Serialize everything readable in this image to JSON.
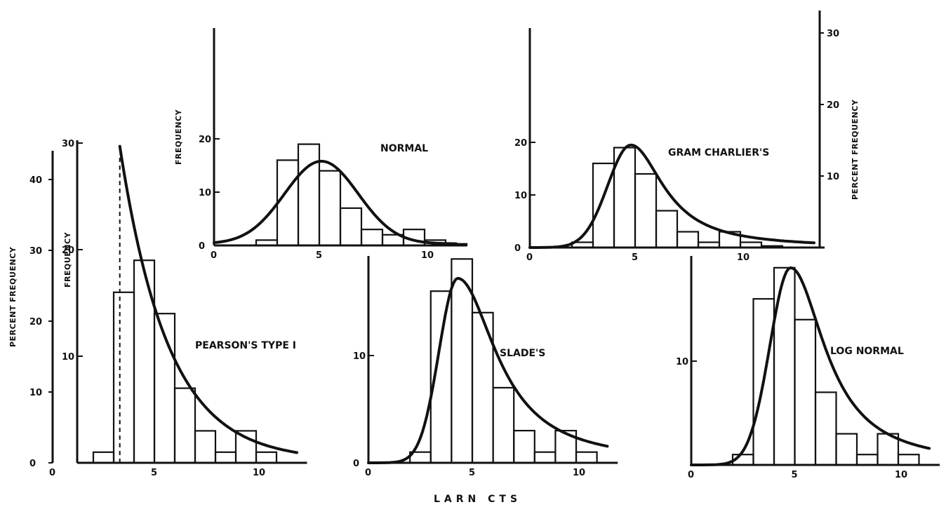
{
  "figure": {
    "xlabel": "LARN CTS"
  },
  "chart_data": [
    {
      "type": "bar",
      "title": "NORMAL",
      "ylabel": "FREQUENCY",
      "x_ticks": [
        "0",
        "5",
        "10"
      ],
      "y_ticks": [
        "0",
        "10",
        "20"
      ],
      "xlim": [
        0,
        12
      ],
      "ylim": [
        0,
        20
      ],
      "bins_start": [
        2,
        3,
        4,
        5,
        6,
        7,
        8,
        9,
        10,
        11
      ],
      "values": [
        1,
        16,
        19,
        14,
        7,
        3,
        2,
        3,
        1,
        0.3
      ],
      "fitted_curve": {
        "kind": "normal",
        "mean": 5.1,
        "peak": 15.5,
        "sd": 1.75
      }
    },
    {
      "type": "bar",
      "title": "GRAM CHARLIER'S",
      "ylabel": "PERCENT FREQUENCY",
      "x_ticks": [
        "0",
        "5",
        "10"
      ],
      "y_ticks": [
        "0",
        "10",
        "20"
      ],
      "y_ticks_right": [
        "10",
        "20",
        "30"
      ],
      "xlim": [
        0,
        14
      ],
      "ylim": [
        0,
        20
      ],
      "bins_start": [
        2,
        3,
        4,
        5,
        6,
        7,
        8,
        9,
        10,
        11
      ],
      "values": [
        1,
        16,
        19,
        14,
        7,
        3,
        1,
        3,
        1,
        0.3
      ],
      "fitted_curve": {
        "kind": "skewed",
        "mode": 4.8,
        "peak": 19.5,
        "sd_left": 1.1,
        "sd_right": 1.6
      }
    },
    {
      "type": "bar",
      "title": "PEARSON'S TYPE I",
      "ylabel": "FREQUENCY",
      "ylabel_outer": "PERCENT FREQUENCY",
      "x_ticks": [
        "0",
        "5",
        "10"
      ],
      "y_ticks": [
        "10",
        "20",
        "30"
      ],
      "y_ticks_outer": [
        "0",
        "10",
        "20",
        "30",
        "40"
      ],
      "xlim": [
        0,
        12.5
      ],
      "ylim": [
        0,
        30
      ],
      "bins_start": [
        2,
        3,
        4,
        5,
        6,
        7,
        8,
        9,
        10
      ],
      "values": [
        1,
        16,
        19,
        14,
        7,
        3,
        1,
        3,
        1
      ],
      "fitted_curve": {
        "kind": "decay",
        "start": 3.3,
        "end": 12,
        "max": 29.5
      }
    },
    {
      "type": "bar",
      "title": "SLADE'S",
      "x_ticks": [
        "0",
        "5",
        "10"
      ],
      "y_ticks": [
        "0",
        "10"
      ],
      "xlim": [
        0,
        12
      ],
      "ylim": [
        0,
        20
      ],
      "bins_start": [
        2,
        3,
        4,
        5,
        6,
        7,
        8,
        9,
        10
      ],
      "values": [
        1,
        16,
        19,
        14,
        7,
        3,
        1,
        3,
        1
      ],
      "fitted_curve": {
        "kind": "skewed",
        "mode": 4.3,
        "peak": 17.2,
        "sd_left": 0.9,
        "sd_right": 1.9
      }
    },
    {
      "type": "bar",
      "title": "LOG NORMAL",
      "x_ticks": [
        "0",
        "5",
        "10"
      ],
      "y_ticks": [
        "10"
      ],
      "xlim": [
        0,
        12
      ],
      "ylim": [
        0,
        20
      ],
      "bins_start": [
        2,
        3,
        4,
        5,
        6,
        7,
        8,
        9,
        10
      ],
      "values": [
        1,
        16,
        19,
        14,
        7,
        3,
        1,
        3,
        1
      ],
      "fitted_curve": {
        "kind": "skewed",
        "mode": 4.8,
        "peak": 19,
        "sd_left": 1.0,
        "sd_right": 1.7
      }
    }
  ]
}
